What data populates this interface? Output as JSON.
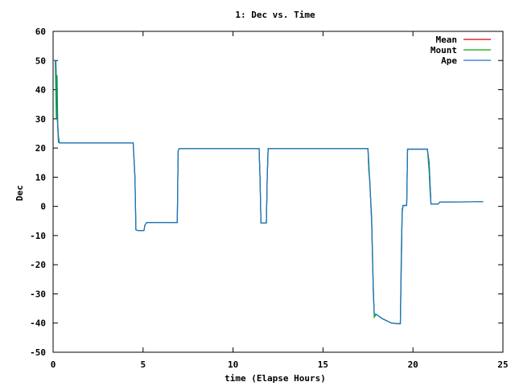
{
  "chart_data": {
    "type": "line",
    "title": "1: Dec vs. Time",
    "xlabel": "time (Elapse Hours)",
    "ylabel": "Dec",
    "xlim": [
      0,
      25
    ],
    "ylim": [
      -50,
      60
    ],
    "xticks": [
      0,
      5,
      10,
      15,
      20,
      25
    ],
    "yticks": [
      -50,
      -40,
      -30,
      -20,
      -10,
      0,
      10,
      20,
      30,
      40,
      50,
      60
    ],
    "grid": false,
    "legend_position": "top-right",
    "series": [
      {
        "name": "Mean",
        "color": "#cc0000",
        "x": [
          0.0,
          0.15,
          0.2,
          0.25,
          0.3,
          0.35,
          4.45,
          4.48,
          4.55,
          4.6,
          4.7,
          5.05,
          5.1,
          5.2,
          6.9,
          6.95,
          7.0,
          11.45,
          11.5,
          11.55,
          11.85,
          11.9,
          11.95,
          17.5,
          17.55,
          17.6,
          17.7,
          17.8,
          17.85,
          17.95,
          18.3,
          18.8,
          19.1,
          19.3,
          19.35,
          19.4,
          19.45,
          19.5,
          19.65,
          19.7,
          20.8,
          20.9,
          20.95,
          21.0,
          21.4,
          21.5,
          22.0,
          23.9
        ],
        "y": [
          50.0,
          50.0,
          35.0,
          28.0,
          22.0,
          21.8,
          21.8,
          18.0,
          10.0,
          -8.0,
          -8.3,
          -8.3,
          -6.5,
          -5.5,
          -5.5,
          19.0,
          19.8,
          19.8,
          10.0,
          -5.7,
          -5.7,
          10.0,
          19.8,
          19.8,
          12.0,
          9.0,
          -5.0,
          -30.0,
          -37.0,
          -37.0,
          -38.5,
          -40.0,
          -40.2,
          -40.2,
          -20.0,
          -2.0,
          0.3,
          0.3,
          0.3,
          19.6,
          19.6,
          15.0,
          8.0,
          0.8,
          0.8,
          1.5,
          1.5,
          1.6
        ]
      },
      {
        "name": "Mount",
        "color": "#00aa00",
        "x": [
          0.0,
          0.12,
          0.18,
          0.22,
          0.26,
          0.3,
          0.35,
          4.45,
          4.48,
          4.55,
          4.6,
          4.7,
          5.05,
          5.1,
          5.2,
          6.9,
          6.95,
          7.0,
          11.45,
          11.5,
          11.55,
          11.85,
          11.9,
          11.95,
          17.5,
          17.55,
          17.6,
          17.7,
          17.8,
          17.85,
          17.95,
          18.3,
          18.8,
          19.1,
          19.3,
          19.35,
          19.4,
          19.45,
          19.5,
          19.65,
          19.7,
          20.8,
          20.9,
          20.95,
          21.0,
          21.4,
          21.5,
          22.0,
          23.9
        ],
        "y": [
          50.0,
          50.0,
          30.0,
          45.0,
          28.0,
          24.0,
          21.8,
          21.8,
          18.0,
          10.0,
          -8.0,
          -8.3,
          -8.3,
          -6.5,
          -5.5,
          -5.5,
          19.0,
          19.8,
          19.8,
          10.0,
          -5.7,
          -5.7,
          10.0,
          19.8,
          19.8,
          15.0,
          8.0,
          -3.0,
          -28.0,
          -38.0,
          -37.0,
          -38.5,
          -40.0,
          -40.2,
          -40.2,
          -15.0,
          -1.0,
          0.3,
          0.3,
          0.3,
          19.6,
          19.6,
          12.0,
          5.0,
          0.8,
          0.8,
          1.5,
          1.5,
          1.6
        ]
      },
      {
        "name": "Ape",
        "color": "#1a74d4",
        "x": [
          0.0,
          0.15,
          0.2,
          0.25,
          0.3,
          0.35,
          4.45,
          4.48,
          4.55,
          4.6,
          4.7,
          5.05,
          5.1,
          5.2,
          6.9,
          6.95,
          7.0,
          11.45,
          11.5,
          11.55,
          11.85,
          11.9,
          11.95,
          17.5,
          17.55,
          17.6,
          17.7,
          17.8,
          17.85,
          17.95,
          18.3,
          18.8,
          19.1,
          19.3,
          19.35,
          19.4,
          19.45,
          19.5,
          19.65,
          19.7,
          20.8,
          20.9,
          20.95,
          21.0,
          21.4,
          21.5,
          22.0,
          23.9
        ],
        "y": [
          50.0,
          50.0,
          35.0,
          28.0,
          22.0,
          21.8,
          21.8,
          18.0,
          10.0,
          -8.0,
          -8.3,
          -8.3,
          -6.5,
          -5.5,
          -5.5,
          19.0,
          19.8,
          19.8,
          10.0,
          -5.7,
          -5.7,
          10.0,
          19.8,
          19.8,
          12.0,
          9.0,
          -5.0,
          -30.0,
          -37.0,
          -37.0,
          -38.5,
          -40.0,
          -40.2,
          -40.2,
          -20.0,
          -2.0,
          0.3,
          0.3,
          0.3,
          19.6,
          19.6,
          15.0,
          8.0,
          0.8,
          0.8,
          1.5,
          1.5,
          1.6
        ]
      }
    ]
  }
}
